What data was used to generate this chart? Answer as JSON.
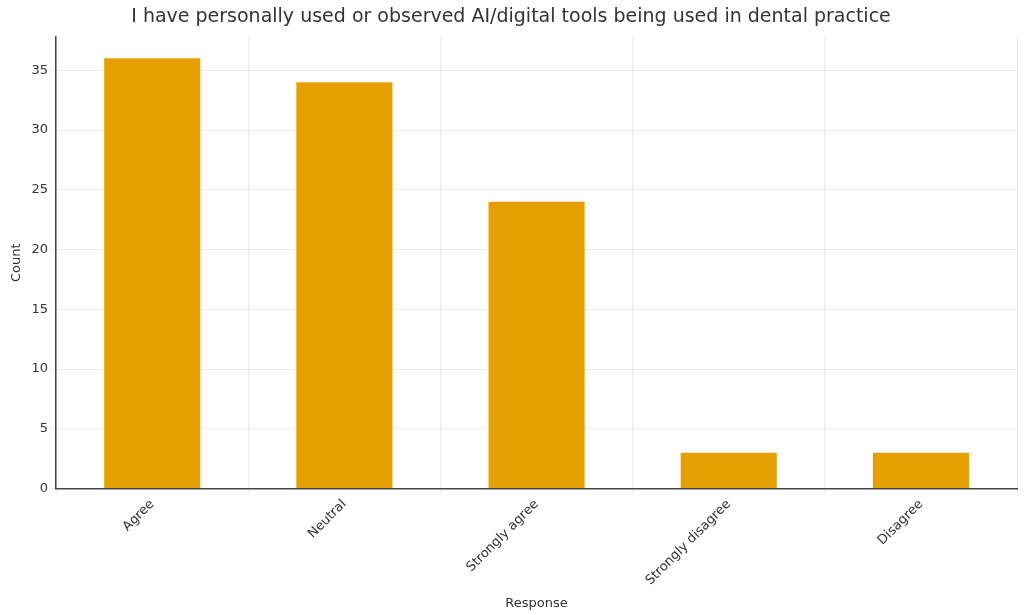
{
  "chart_data": {
    "type": "bar",
    "title": "I have personally used or observed AI/digital tools being used in dental practice",
    "xlabel": "Response",
    "ylabel": "Count",
    "categories": [
      "Agree",
      "Neutral",
      "Strongly agree",
      "Strongly disagree",
      "Disagree"
    ],
    "values": [
      36,
      34,
      24,
      3,
      3
    ],
    "color": "#e69f00",
    "ylim": [
      0,
      37.8
    ],
    "yticks": [
      0,
      5,
      10,
      15,
      20,
      25,
      30,
      35
    ],
    "grid": true,
    "legend": false
  }
}
